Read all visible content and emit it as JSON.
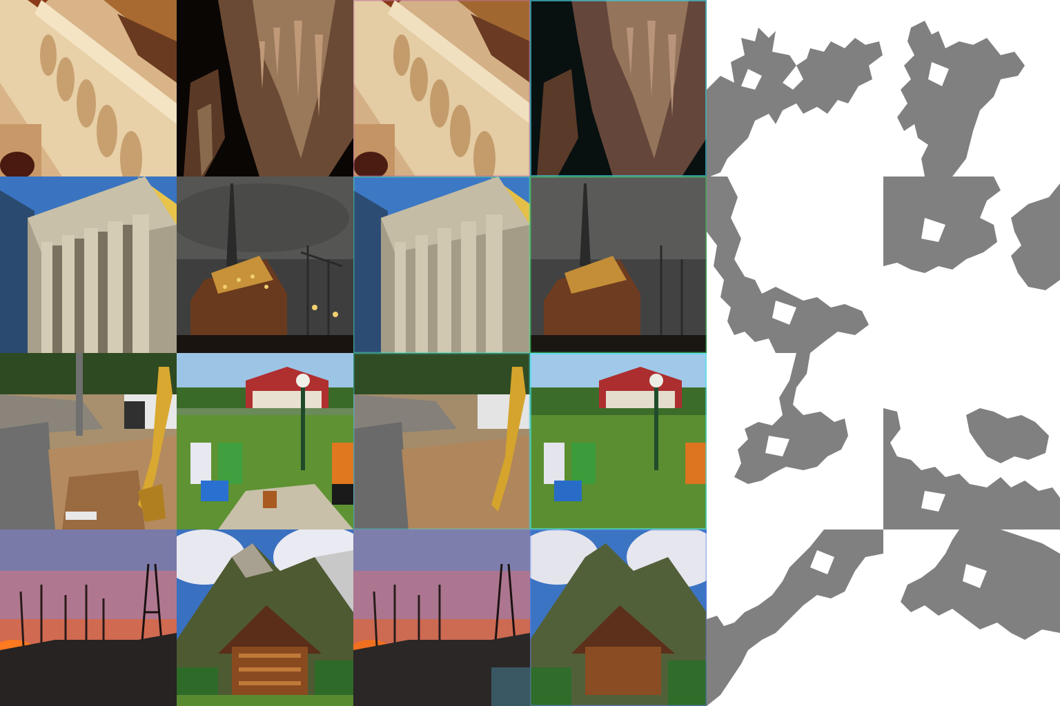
{
  "grid": {
    "rows": 4,
    "columns": 6,
    "column_roles": [
      "photo-a",
      "photo-b",
      "photo-a-reconstruction",
      "photo-b-reconstruction",
      "mask",
      "mask"
    ]
  },
  "colors": {
    "background": "#ffffff",
    "mask_fill": "#808080"
  },
  "rows": [
    {
      "scene_a": "stone-balustrade-staircase",
      "scene_b": "cave-stalactites",
      "palette_a": [
        "#c9a27a",
        "#e8cfa8",
        "#8a5a33",
        "#b87a44"
      ],
      "palette_b": [
        "#0b0704",
        "#7a5a40",
        "#b89070",
        "#3a2618"
      ]
    },
    {
      "scene_a": "neoclassical-columned-building",
      "scene_b": "oil-rig-at-dusk",
      "palette_a": [
        "#3a6fb8",
        "#b9b19c",
        "#8a8370",
        "#e8c44a"
      ],
      "palette_b": [
        "#3b3b3b",
        "#5b5a58",
        "#c8923a",
        "#6a2a18"
      ]
    },
    {
      "scene_a": "construction-site-excavator",
      "scene_b": "park-lawn-with-people",
      "palette_a": [
        "#2f4a20",
        "#a58a6a",
        "#7a6a5a",
        "#d8a830"
      ],
      "palette_b": [
        "#9cc0e0",
        "#5a8a30",
        "#b03030",
        "#e07820"
      ]
    },
    {
      "scene_a": "sunset-tree-silhouettes",
      "scene_b": "mountain-log-cabin",
      "palette_a": [
        "#8a8ab0",
        "#c07080",
        "#e05020",
        "#1e1a1a"
      ],
      "palette_b": [
        "#3a70c0",
        "#e8e8f0",
        "#4a5a30",
        "#8a4a20"
      ]
    }
  ]
}
